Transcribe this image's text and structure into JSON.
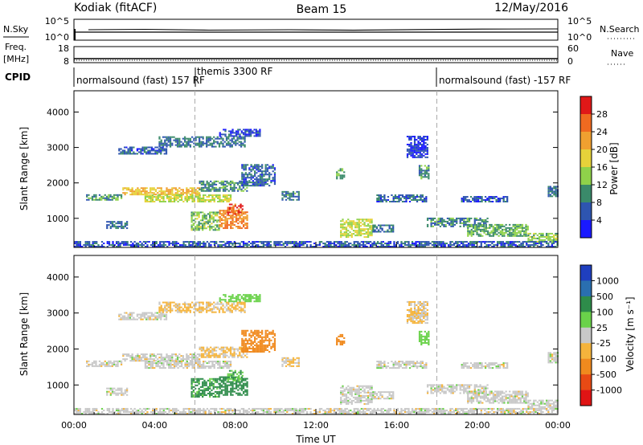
{
  "header": {
    "station": "Kodiak (fitACF)",
    "beam": "Beam 15",
    "date": "12/May/2016"
  },
  "nsky_panel": {
    "left_label": "N.Sky",
    "right_label": "N.Search",
    "left_ticks": [
      "10^5",
      "10^0"
    ],
    "right_ticks": [
      "10^5",
      "10^0"
    ]
  },
  "freq_panel": {
    "left_label": "Freq.",
    "left_units": "[MHz]",
    "right_label": "Nave",
    "left_ticks": [
      "18",
      "8"
    ],
    "right_ticks": [
      "60",
      "0"
    ]
  },
  "cpid_panel": {
    "label": "CPID",
    "segments": [
      {
        "name": "normalsound (fast) 157 RF",
        "start_hour": 0
      },
      {
        "name": "themis 3300 RF",
        "start_hour": 6
      },
      {
        "name": "normalsound (fast) -157 RF",
        "start_hour": 18
      }
    ]
  },
  "power_panel": {
    "ylabel": "Slant Range [km]",
    "yticks": [
      "1000",
      "2000",
      "3000",
      "4000"
    ],
    "colorbar_label": "Power [dB]",
    "colorbar_ticks": [
      "4",
      "8",
      "12",
      "16",
      "20",
      "24",
      "28"
    ]
  },
  "velocity_panel": {
    "ylabel": "Slant Range [km]",
    "yticks": [
      "1000",
      "2000",
      "3000",
      "4000"
    ],
    "colorbar_label": "Velocity [m s⁻¹]",
    "colorbar_ticks": [
      "1000",
      "500",
      "100",
      "25",
      "-25",
      "-100",
      "-500",
      "-1000"
    ]
  },
  "x_axis": {
    "label": "Time UT",
    "ticks": [
      "00:00",
      "04:00",
      "08:00",
      "12:00",
      "16:00",
      "20:00",
      "00:00"
    ]
  },
  "chart_data": {
    "type": "heatmap",
    "x_range_hours": [
      0,
      24
    ],
    "y_range_km": [
      180,
      4600
    ],
    "vertical_markers_hours": [
      6,
      18
    ],
    "power_colors": [
      "#1a1aff",
      "#2e55b0",
      "#3a8a6a",
      "#8fd24a",
      "#e6d23a",
      "#f0a030",
      "#f06a20",
      "#e01818"
    ],
    "velocity_colors": [
      "#1f3fbf",
      "#2a6fb0",
      "#2e8c4a",
      "#6ad24a",
      "#c8c8c8",
      "#f5b43c",
      "#f08a1e",
      "#e84a14",
      "#e01414"
    ],
    "regions": [
      {
        "t0": 2.2,
        "t1": 4.6,
        "r0": 2800,
        "r1": 3000,
        "power": 7,
        "velocity": 0
      },
      {
        "t0": 4.2,
        "t1": 8.5,
        "r0": 3000,
        "r1": 3300,
        "power": 8,
        "velocity": -40
      },
      {
        "t0": 7.2,
        "t1": 9.2,
        "r0": 3300,
        "r1": 3500,
        "power": 5,
        "velocity": 60
      },
      {
        "t0": 0.6,
        "t1": 2.4,
        "r0": 1500,
        "r1": 1650,
        "power": 10,
        "velocity": 0
      },
      {
        "t0": 2.4,
        "t1": 6.2,
        "r0": 1650,
        "r1": 1850,
        "power": 20,
        "velocity": 0
      },
      {
        "t0": 3.5,
        "t1": 7.8,
        "r0": 1450,
        "r1": 1650,
        "power": 16,
        "velocity": 0
      },
      {
        "t0": 6.2,
        "t1": 8.6,
        "r0": 1750,
        "r1": 2050,
        "power": 10,
        "velocity": -30
      },
      {
        "t0": 8.3,
        "t1": 10.0,
        "r0": 1900,
        "r1": 2500,
        "power": 7,
        "velocity": -150
      },
      {
        "t0": 5.8,
        "t1": 7.2,
        "r0": 650,
        "r1": 1150,
        "power": 13,
        "velocity": 120
      },
      {
        "t0": 7.2,
        "t1": 8.6,
        "r0": 700,
        "r1": 1200,
        "power": 24,
        "velocity": 180
      },
      {
        "t0": 7.6,
        "t1": 8.4,
        "r0": 1100,
        "r1": 1400,
        "power": 27,
        "velocity": 90
      },
      {
        "t0": 1.6,
        "t1": 2.6,
        "r0": 700,
        "r1": 900,
        "power": 8,
        "velocity": 0
      },
      {
        "t0": 10.3,
        "t1": 11.2,
        "r0": 1500,
        "r1": 1750,
        "power": 9,
        "velocity": -20
      },
      {
        "t0": 13.2,
        "t1": 14.8,
        "r0": 450,
        "r1": 950,
        "power": 16,
        "velocity": 0
      },
      {
        "t0": 14.8,
        "t1": 15.8,
        "r0": 600,
        "r1": 800,
        "power": 8,
        "velocity": 0
      },
      {
        "t0": 15.0,
        "t1": 17.5,
        "r0": 1450,
        "r1": 1650,
        "power": 7,
        "velocity": 0
      },
      {
        "t0": 17.1,
        "t1": 17.6,
        "r0": 2100,
        "r1": 2500,
        "power": 10,
        "velocity": 70
      },
      {
        "t0": 16.5,
        "t1": 17.5,
        "r0": 2700,
        "r1": 3300,
        "power": 4,
        "velocity": -30
      },
      {
        "t0": 13.0,
        "t1": 13.4,
        "r0": 2100,
        "r1": 2400,
        "power": 12,
        "velocity": -400
      },
      {
        "t0": 17.5,
        "t1": 20.5,
        "r0": 750,
        "r1": 1000,
        "power": 9,
        "velocity": 0
      },
      {
        "t0": 19.5,
        "t1": 22.5,
        "r0": 480,
        "r1": 800,
        "power": 12,
        "velocity": 0
      },
      {
        "t0": 22.5,
        "t1": 24.0,
        "r0": 320,
        "r1": 580,
        "power": 14,
        "velocity": 0
      },
      {
        "t0": 19.2,
        "t1": 21.5,
        "r0": 1450,
        "r1": 1600,
        "power": 6,
        "velocity": 0
      },
      {
        "t0": 23.5,
        "t1": 24.0,
        "r0": 1600,
        "r1": 1900,
        "power": 8,
        "velocity": 0
      },
      {
        "t0": 0.0,
        "t1": 24.0,
        "r0": 180,
        "r1": 330,
        "power": 6,
        "velocity": 0
      }
    ]
  }
}
